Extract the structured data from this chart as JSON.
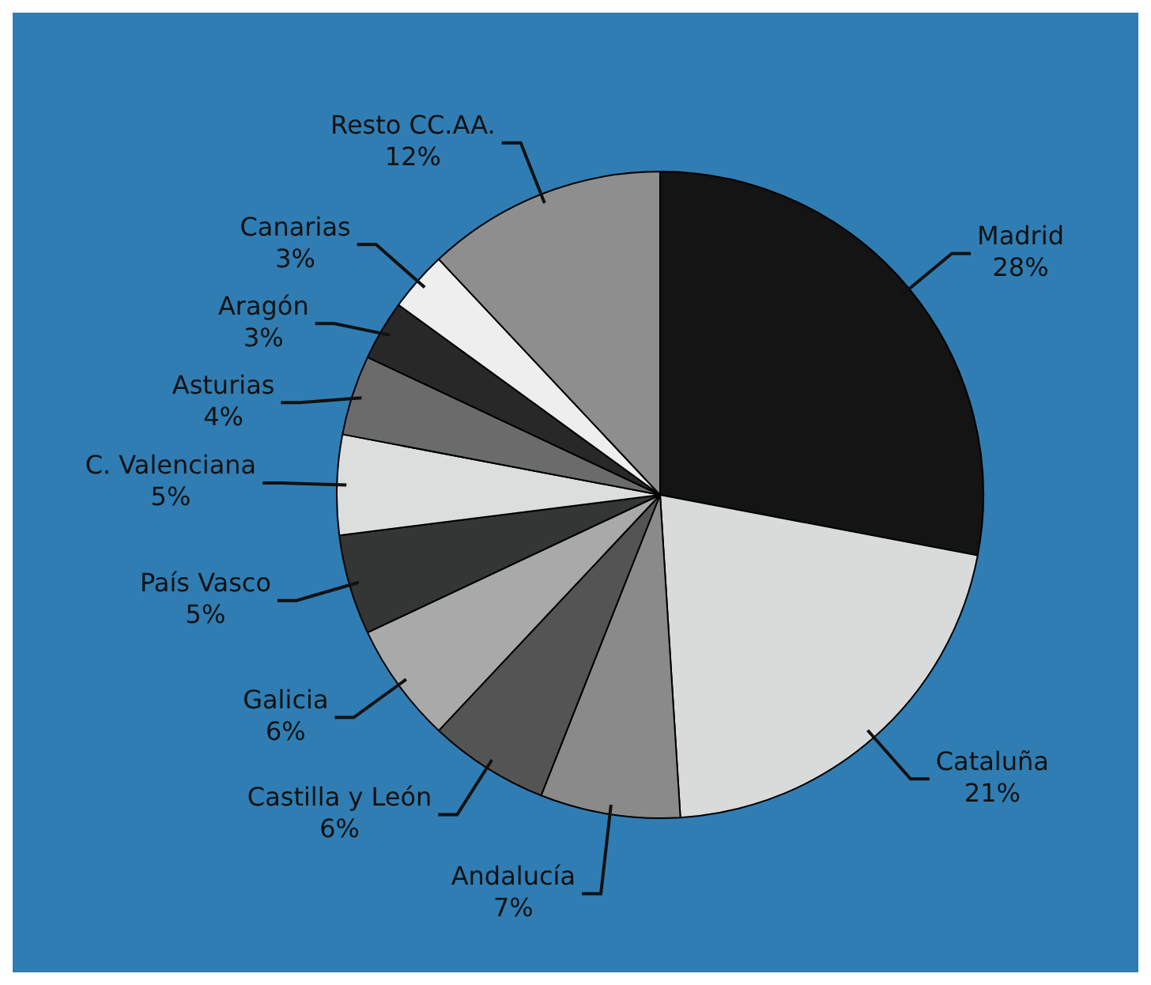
{
  "chart_data": {
    "type": "pie",
    "categories": [
      "Madrid",
      "Cataluña",
      "Andalucía",
      "Castilla y León",
      "Galicia",
      "País Vasco",
      "C. Valenciana",
      "Asturias",
      "Aragón",
      "Canarias",
      "Resto CC.AA."
    ],
    "values": [
      28,
      21,
      7,
      6,
      6,
      5,
      5,
      4,
      3,
      3,
      12
    ],
    "value_labels": [
      "28%",
      "21%",
      "7%",
      "6%",
      "6%",
      "5%",
      "5%",
      "4%",
      "3%",
      "3%",
      "12%"
    ],
    "colors": [
      "#141414",
      "#d9dbdb",
      "#8a8a8a",
      "#545454",
      "#a9a9a9",
      "#333635",
      "#dcdddd",
      "#6b6b6b",
      "#282828",
      "#eeeeee",
      "#8e8e8e"
    ],
    "legend": false
  }
}
